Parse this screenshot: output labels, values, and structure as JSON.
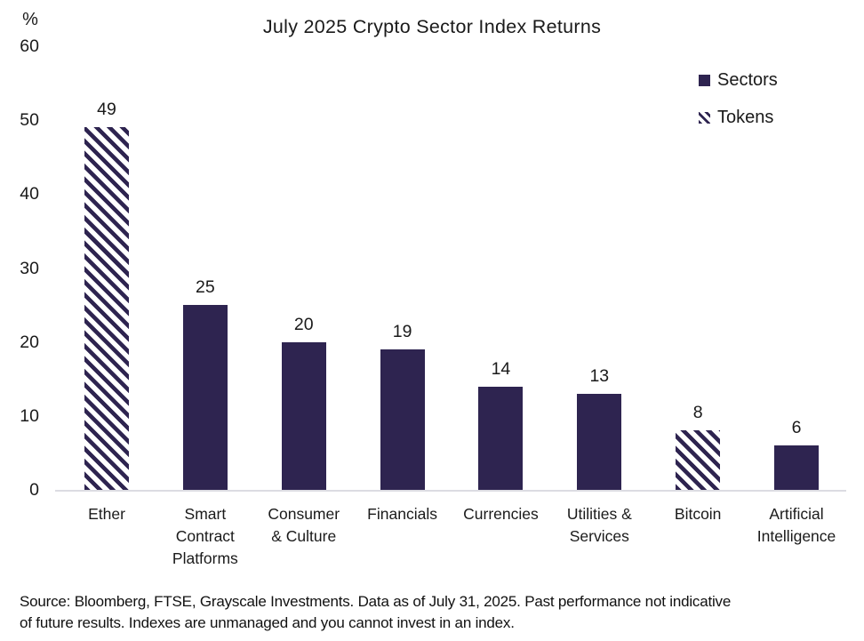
{
  "title": "July 2025 Crypto Sector Index Returns",
  "y_axis": {
    "unit_label": "%",
    "ticks": [
      60,
      50,
      40,
      30,
      20,
      10,
      0
    ]
  },
  "legend": {
    "position": "top-right",
    "items": [
      {
        "label": "Sectors",
        "style": "solid"
      },
      {
        "label": "Tokens",
        "style": "hatched"
      }
    ]
  },
  "chart_data": {
    "type": "bar",
    "title": "July 2025 Crypto Sector Index Returns",
    "xlabel": "",
    "ylabel": "%",
    "ylim": [
      0,
      60
    ],
    "grid": false,
    "categories": [
      "Ether",
      "Smart Contract Platforms",
      "Consumer & Culture",
      "Financials",
      "Currencies",
      "Utilities & Services",
      "Bitcoin",
      "Artificial Intelligence"
    ],
    "category_lines": [
      [
        "Ether"
      ],
      [
        "Smart",
        "Contract",
        "Platforms"
      ],
      [
        "Consumer",
        "& Culture"
      ],
      [
        "Financials"
      ],
      [
        "Currencies"
      ],
      [
        "Utilities &",
        "Services"
      ],
      [
        "Bitcoin"
      ],
      [
        "Artificial",
        "Intelligence"
      ]
    ],
    "values": [
      49,
      25,
      20,
      19,
      14,
      13,
      8,
      6
    ],
    "styles": [
      "hatched",
      "solid",
      "solid",
      "solid",
      "solid",
      "solid",
      "hatched",
      "solid"
    ],
    "series_note": "hatched = Tokens, solid = Sectors"
  },
  "footer": {
    "line1": "Source: Bloomberg, FTSE, Grayscale Investments. Data as of July 31, 2025. Past performance not indicative",
    "line2": "of future results. Indexes are unmanaged and you cannot invest in an index."
  },
  "colors": {
    "bar": "#2e2450",
    "axis_line": "#dcdce2",
    "text": "#1a1a1a",
    "background": "#ffffff"
  }
}
